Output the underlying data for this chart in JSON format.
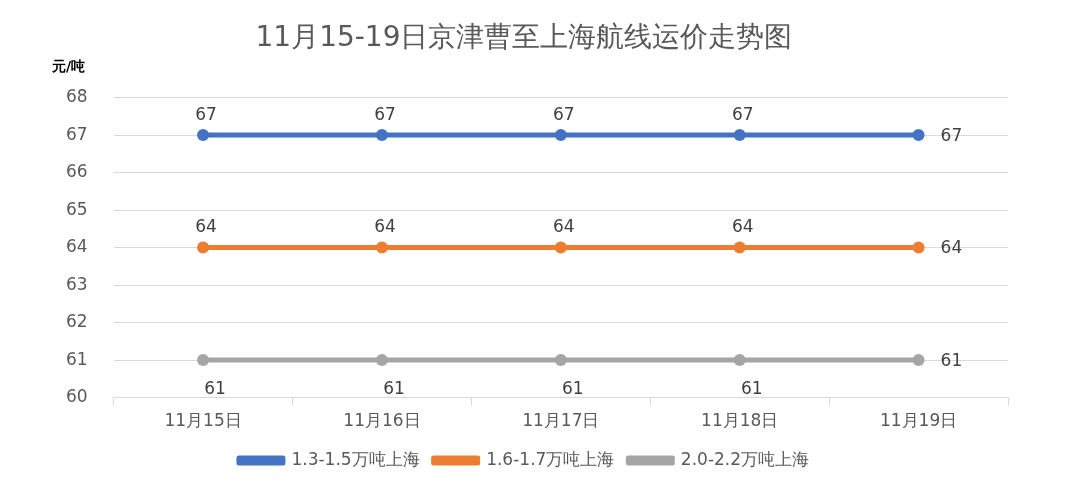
{
  "chart_data": {
    "type": "line",
    "title": "11月15-19日京津曹至上海航线运价走势图",
    "ylabel": "元/吨",
    "categories": [
      "11月15日",
      "11月16日",
      "11月17日",
      "11月18日",
      "11月19日"
    ],
    "series": [
      {
        "name": "1.3-1.5万吨上海",
        "color": "#4472c4",
        "values": [
          67,
          67,
          67,
          67,
          67
        ]
      },
      {
        "name": "1.6-1.7万吨上海",
        "color": "#ed7d31",
        "values": [
          64,
          64,
          64,
          64,
          64
        ]
      },
      {
        "name": "2.0-2.2万吨上海",
        "color": "#a5a5a5",
        "values": [
          61,
          61,
          61,
          61,
          61
        ]
      }
    ],
    "ylim": [
      60,
      68
    ],
    "yticks": [
      60,
      61,
      62,
      63,
      64,
      65,
      66,
      67,
      68
    ],
    "grid": "y",
    "legend": "bottom",
    "marker": "circle",
    "line_style": "solid",
    "data_labels": true
  }
}
